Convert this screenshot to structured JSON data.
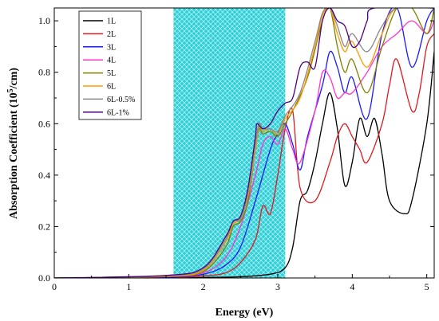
{
  "chart_data": {
    "type": "line",
    "xlabel": "Energy (eV)",
    "ylabel_parts": [
      "Absorption Coefficient  (10",
      "5",
      "/cm)"
    ],
    "xlim": [
      0,
      5.1
    ],
    "ylim": [
      0,
      1.05
    ],
    "xticks": [
      0,
      1,
      2,
      3,
      4,
      5
    ],
    "yticks": [
      0.0,
      0.2,
      0.4,
      0.6,
      0.8,
      1.0
    ],
    "xtick_labels": [
      "0",
      "1",
      "2",
      "3",
      "4",
      "5"
    ],
    "ytick_labels": [
      "0.0",
      "0.2",
      "0.4",
      "0.6",
      "0.8",
      "1.0"
    ],
    "grid": false,
    "legend_position": "top-left",
    "highlight_band": {
      "x_start": 1.6,
      "x_end": 3.1,
      "color": "#2ecfd6"
    },
    "series": [
      {
        "name": "1L",
        "color": "#000000",
        "points": [
          [
            0,
            0
          ],
          [
            1.5,
            0
          ],
          [
            2.0,
            0.002
          ],
          [
            2.5,
            0.005
          ],
          [
            2.9,
            0.015
          ],
          [
            3.1,
            0.04
          ],
          [
            3.2,
            0.12
          ],
          [
            3.3,
            0.3
          ],
          [
            3.4,
            0.34
          ],
          [
            3.5,
            0.45
          ],
          [
            3.6,
            0.6
          ],
          [
            3.7,
            0.72
          ],
          [
            3.8,
            0.58
          ],
          [
            3.9,
            0.36
          ],
          [
            4.0,
            0.45
          ],
          [
            4.1,
            0.62
          ],
          [
            4.2,
            0.55
          ],
          [
            4.3,
            0.62
          ],
          [
            4.4,
            0.48
          ],
          [
            4.5,
            0.3
          ],
          [
            4.7,
            0.25
          ],
          [
            4.8,
            0.3
          ],
          [
            5.0,
            0.6
          ],
          [
            5.1,
            0.88
          ]
        ]
      },
      {
        "name": "2L",
        "color": "#e0191e",
        "points": [
          [
            0,
            0
          ],
          [
            1.5,
            0.002
          ],
          [
            2.0,
            0.008
          ],
          [
            2.3,
            0.02
          ],
          [
            2.5,
            0.06
          ],
          [
            2.7,
            0.15
          ],
          [
            2.8,
            0.28
          ],
          [
            2.9,
            0.25
          ],
          [
            3.0,
            0.4
          ],
          [
            3.1,
            0.58
          ],
          [
            3.2,
            0.65
          ],
          [
            3.3,
            0.35
          ],
          [
            3.5,
            0.3
          ],
          [
            3.7,
            0.45
          ],
          [
            3.8,
            0.55
          ],
          [
            3.9,
            0.6
          ],
          [
            4.0,
            0.55
          ],
          [
            4.1,
            0.5
          ],
          [
            4.2,
            0.45
          ],
          [
            4.4,
            0.6
          ],
          [
            4.5,
            0.75
          ],
          [
            4.6,
            0.85
          ],
          [
            4.8,
            0.65
          ],
          [
            4.9,
            0.72
          ],
          [
            5.0,
            0.9
          ],
          [
            5.1,
            0.95
          ]
        ]
      },
      {
        "name": "3L",
        "color": "#1a1aff",
        "points": [
          [
            0,
            0
          ],
          [
            1.5,
            0.003
          ],
          [
            2.0,
            0.015
          ],
          [
            2.3,
            0.05
          ],
          [
            2.5,
            0.12
          ],
          [
            2.7,
            0.3
          ],
          [
            2.9,
            0.5
          ],
          [
            3.0,
            0.56
          ],
          [
            3.1,
            0.6
          ],
          [
            3.2,
            0.52
          ],
          [
            3.3,
            0.42
          ],
          [
            3.4,
            0.55
          ],
          [
            3.6,
            0.75
          ],
          [
            3.7,
            0.88
          ],
          [
            3.8,
            0.82
          ],
          [
            3.9,
            0.72
          ],
          [
            4.0,
            0.78
          ],
          [
            4.2,
            0.62
          ],
          [
            4.4,
            0.95
          ],
          [
            4.6,
            1.05
          ],
          [
            4.8,
            0.82
          ],
          [
            5.0,
            1.0
          ],
          [
            5.1,
            1.05
          ]
        ]
      },
      {
        "name": "4L",
        "color": "#ff33cc",
        "points": [
          [
            0,
            0
          ],
          [
            1.5,
            0.005
          ],
          [
            2.0,
            0.02
          ],
          [
            2.3,
            0.08
          ],
          [
            2.5,
            0.2
          ],
          [
            2.7,
            0.4
          ],
          [
            2.8,
            0.52
          ],
          [
            2.9,
            0.55
          ],
          [
            3.0,
            0.52
          ],
          [
            3.1,
            0.58
          ],
          [
            3.2,
            0.5
          ],
          [
            3.3,
            0.45
          ],
          [
            3.5,
            0.65
          ],
          [
            3.6,
            0.8
          ],
          [
            3.7,
            0.78
          ],
          [
            3.8,
            0.7
          ],
          [
            3.9,
            0.72
          ],
          [
            4.0,
            0.72
          ],
          [
            4.2,
            0.8
          ],
          [
            4.4,
            0.9
          ],
          [
            4.6,
            0.95
          ],
          [
            4.8,
            1.0
          ],
          [
            5.0,
            0.95
          ],
          [
            5.1,
            1.0
          ]
        ]
      },
      {
        "name": "5L",
        "color": "#808000",
        "points": [
          [
            0,
            0
          ],
          [
            1.5,
            0.006
          ],
          [
            2.0,
            0.025
          ],
          [
            2.3,
            0.12
          ],
          [
            2.4,
            0.2
          ],
          [
            2.5,
            0.22
          ],
          [
            2.6,
            0.3
          ],
          [
            2.7,
            0.5
          ],
          [
            2.75,
            0.58
          ],
          [
            2.8,
            0.56
          ],
          [
            2.9,
            0.57
          ],
          [
            3.0,
            0.55
          ],
          [
            3.1,
            0.6
          ],
          [
            3.2,
            0.65
          ],
          [
            3.4,
            0.78
          ],
          [
            3.6,
            1.0
          ],
          [
            3.7,
            1.05
          ],
          [
            3.8,
            0.9
          ],
          [
            3.9,
            0.8
          ],
          [
            4.0,
            0.85
          ],
          [
            4.2,
            0.72
          ],
          [
            4.4,
            0.9
          ],
          [
            4.6,
            1.05
          ],
          [
            4.8,
            1.05
          ],
          [
            5.0,
            0.95
          ],
          [
            5.1,
            1.05
          ]
        ]
      },
      {
        "name": "6L",
        "color": "#ff9900",
        "points": [
          [
            0,
            0
          ],
          [
            1.5,
            0.007
          ],
          [
            2.0,
            0.03
          ],
          [
            2.3,
            0.14
          ],
          [
            2.4,
            0.21
          ],
          [
            2.5,
            0.23
          ],
          [
            2.6,
            0.32
          ],
          [
            2.7,
            0.5
          ],
          [
            2.75,
            0.59
          ],
          [
            2.8,
            0.57
          ],
          [
            2.9,
            0.58
          ],
          [
            3.0,
            0.56
          ],
          [
            3.1,
            0.62
          ],
          [
            3.3,
            0.7
          ],
          [
            3.5,
            0.9
          ],
          [
            3.6,
            1.02
          ],
          [
            3.7,
            1.05
          ],
          [
            3.8,
            0.95
          ],
          [
            3.9,
            0.88
          ],
          [
            4.0,
            0.92
          ],
          [
            4.2,
            0.82
          ],
          [
            4.4,
            0.95
          ],
          [
            4.6,
            1.05
          ],
          [
            5.1,
            1.05
          ]
        ]
      },
      {
        "name": "6L-0.5%",
        "color": "#888888",
        "points": [
          [
            0,
            0
          ],
          [
            1.5,
            0.008
          ],
          [
            2.0,
            0.035
          ],
          [
            2.3,
            0.15
          ],
          [
            2.4,
            0.22
          ],
          [
            2.5,
            0.23
          ],
          [
            2.6,
            0.33
          ],
          [
            2.7,
            0.52
          ],
          [
            2.75,
            0.6
          ],
          [
            2.8,
            0.58
          ],
          [
            2.9,
            0.58
          ],
          [
            3.0,
            0.57
          ],
          [
            3.1,
            0.63
          ],
          [
            3.3,
            0.72
          ],
          [
            3.5,
            0.92
          ],
          [
            3.6,
            1.03
          ],
          [
            3.7,
            1.05
          ],
          [
            3.8,
            0.98
          ],
          [
            3.9,
            0.9
          ],
          [
            4.0,
            0.95
          ],
          [
            4.2,
            0.88
          ],
          [
            4.4,
            0.98
          ],
          [
            4.6,
            1.05
          ],
          [
            5.1,
            1.05
          ]
        ]
      },
      {
        "name": "6L-1%",
        "color": "#4b0082",
        "points": [
          [
            0,
            0
          ],
          [
            1.5,
            0.01
          ],
          [
            2.0,
            0.04
          ],
          [
            2.3,
            0.16
          ],
          [
            2.4,
            0.22
          ],
          [
            2.5,
            0.24
          ],
          [
            2.6,
            0.35
          ],
          [
            2.7,
            0.55
          ],
          [
            2.72,
            0.6
          ],
          [
            2.8,
            0.58
          ],
          [
            2.9,
            0.6
          ],
          [
            3.0,
            0.65
          ],
          [
            3.1,
            0.68
          ],
          [
            3.2,
            0.7
          ],
          [
            3.3,
            0.82
          ],
          [
            3.4,
            0.84
          ],
          [
            3.5,
            0.82
          ],
          [
            3.6,
            1.0
          ],
          [
            3.7,
            1.05
          ],
          [
            3.8,
            1.0
          ],
          [
            3.9,
            0.98
          ],
          [
            4.0,
            0.9
          ],
          [
            4.1,
            0.92
          ],
          [
            4.2,
            1.0
          ],
          [
            4.3,
            1.05
          ],
          [
            5.1,
            1.05
          ]
        ]
      }
    ]
  }
}
